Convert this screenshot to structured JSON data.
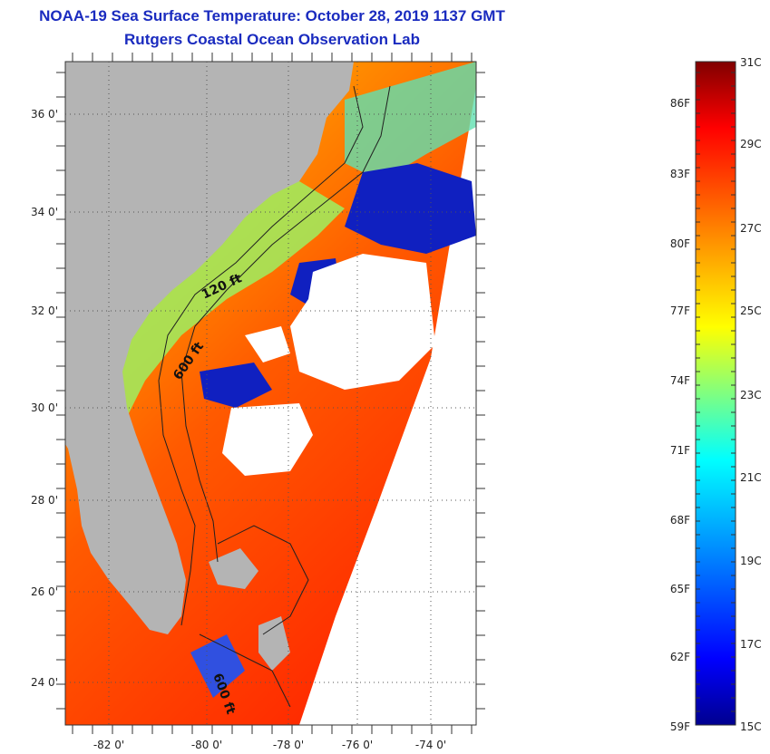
{
  "header": {
    "title": "NOAA-19 Sea Surface Temperature:  October 28, 2019 1137 GMT",
    "subtitle": "Rutgers Coastal Ocean Observation Lab"
  },
  "map": {
    "lat_labels": [
      "36 0'",
      "34 0'",
      "32 0'",
      "30 0'",
      "28 0'",
      "26 0'",
      "24 0'"
    ],
    "lon_labels": [
      "-82 0'",
      "-80 0'",
      "-78 0'",
      "-76 0'",
      "-74 0'"
    ],
    "contour_labels": [
      "120 ft",
      "600 ft",
      "600 ft"
    ],
    "colors": {
      "land": "#b4b4b4",
      "cloud": "#ffffff",
      "grid": "#555555"
    }
  },
  "colorbar": {
    "fahrenheit": [
      "86F",
      "83F",
      "80F",
      "77F",
      "74F",
      "71F",
      "68F",
      "65F",
      "62F",
      "59F"
    ],
    "celsius": [
      "31C",
      "29C",
      "27C",
      "25C",
      "23C",
      "21C",
      "19C",
      "17C",
      "15C"
    ],
    "colors": [
      "#00008f",
      "#0000ff",
      "#0080ff",
      "#00ffff",
      "#80ff80",
      "#ffff00",
      "#ff8000",
      "#ff0000",
      "#800000"
    ]
  }
}
